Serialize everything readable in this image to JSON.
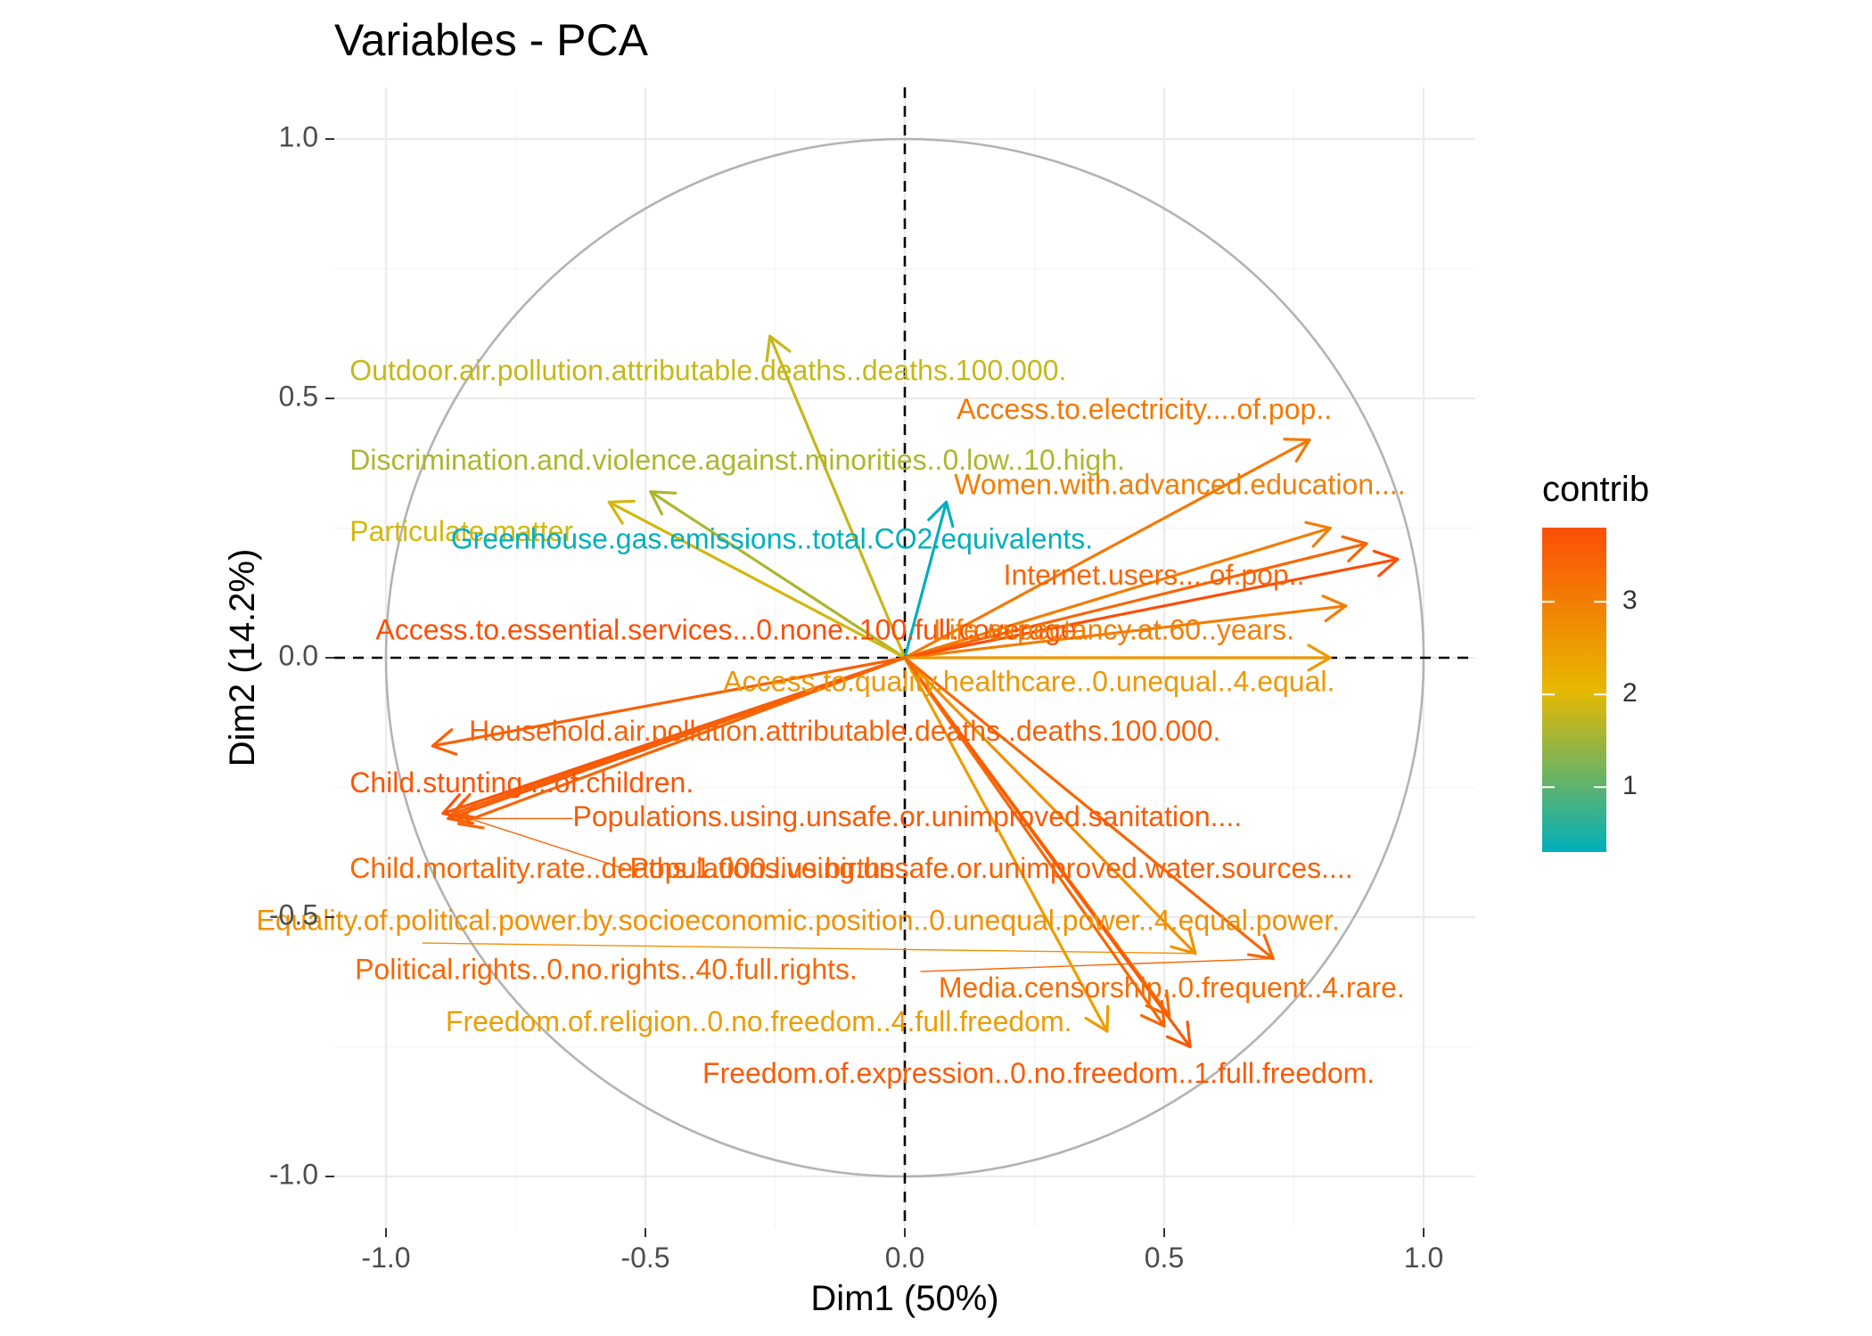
{
  "chart_data": {
    "type": "scatter",
    "title": "Variables - PCA",
    "xlabel": "Dim1 (50%)",
    "ylabel": "Dim2 (14.2%)",
    "xlim": [
      -1.1,
      1.1
    ],
    "ylim": [
      -1.1,
      1.1
    ],
    "x_ticks": [
      {
        "value": -1.0,
        "label": "-1.0"
      },
      {
        "value": -0.5,
        "label": "-0.5"
      },
      {
        "value": 0.0,
        "label": "0.0"
      },
      {
        "value": 0.5,
        "label": "0.5"
      },
      {
        "value": 1.0,
        "label": "1.0"
      }
    ],
    "y_ticks": [
      {
        "value": 1.0,
        "label": "1.0"
      },
      {
        "value": 0.5,
        "label": "0.5"
      },
      {
        "value": 0.0,
        "label": "0.0"
      },
      {
        "value": -0.5,
        "label": "-0.5"
      },
      {
        "value": -1.0,
        "label": "-1.0"
      }
    ],
    "grid": true,
    "unit_circle": true,
    "reference_lines": "dashed lines at x = 0 and y = 0",
    "color_scale": {
      "title": "contrib",
      "min": 0.3,
      "max": 3.8,
      "low_color": "#00AFBB",
      "mid_color": "#E7B800",
      "mid_value": 2.05,
      "high_color": "#FC4E07",
      "ticks": [
        {
          "value": 1,
          "label": "1"
        },
        {
          "value": 2,
          "label": "2"
        },
        {
          "value": 3,
          "label": "3"
        }
      ]
    },
    "legend_position": "right",
    "variables": [
      {
        "name": "Outdoor.air.pollution.attributable.deaths..deaths.100.000.",
        "x": -0.26,
        "y": 0.62,
        "contrib": 1.8
      },
      {
        "name": "Access.to.electricity....of.pop..",
        "x": 0.78,
        "y": 0.42,
        "contrib": 3.1
      },
      {
        "name": "Discrimination.and.violence.against.minorities..0.low..10.high.",
        "x": -0.49,
        "y": 0.32,
        "contrib": 1.6
      },
      {
        "name": "Women.with.advanced.education....",
        "x": 0.82,
        "y": 0.25,
        "contrib": 3.0
      },
      {
        "name": "Particulate.matter",
        "x": -0.57,
        "y": 0.3,
        "contrib": 1.9
      },
      {
        "name": "Greenhouse.gas.emissions..total.CO2.equivalents.",
        "x": 0.08,
        "y": 0.3,
        "contrib": 0.3
      },
      {
        "name": "Internet.users....of.pop..",
        "x": 0.89,
        "y": 0.22,
        "contrib": 3.4
      },
      {
        "name": "Life.expectancy.at.60..years.",
        "x": 0.85,
        "y": 0.1,
        "contrib": 3.0
      },
      {
        "name": "Access.to.essential.services...0.none..100.full.coverage.",
        "x": 0.95,
        "y": 0.19,
        "contrib": 3.8
      },
      {
        "name": "Access.to.quality.healthcare..0.unequal..4.equal.",
        "x": 0.82,
        "y": 0.0,
        "contrib": 2.6
      },
      {
        "name": "Household.air.pollution.attributable.deaths..deaths.100.000.",
        "x": -0.91,
        "y": -0.17,
        "contrib": 3.5
      },
      {
        "name": "Child.stunting....of.children.",
        "x": -0.89,
        "y": -0.3,
        "contrib": 3.7
      },
      {
        "name": "Populations.using.unsafe.or.unimproved.sanitation....",
        "x": -0.88,
        "y": -0.31,
        "contrib": 3.6
      },
      {
        "name": "Child.mortality.rate..deaths.1.000.live.births.",
        "x": -0.86,
        "y": -0.32,
        "contrib": 3.4
      },
      {
        "name": "Populations.using.unsafe.or.unimproved.water.sources....",
        "x": -0.87,
        "y": -0.3,
        "contrib": 3.5
      },
      {
        "name": "Equality.of.political.power.by.socioeconomic.position..0.unequal.power..4.equal.power.",
        "x": 0.56,
        "y": -0.57,
        "contrib": 2.7
      },
      {
        "name": "Political.rights..0.no.rights..40.full.rights.",
        "x": 0.71,
        "y": -0.58,
        "contrib": 3.4
      },
      {
        "name": "Media.censorship..0.frequent..4.rare.",
        "x": 0.51,
        "y": -0.69,
        "contrib": 3.3
      },
      {
        "name": "Freedom.of.religion..0.no.freedom..4.full.freedom.",
        "x": 0.39,
        "y": -0.72,
        "contrib": 2.5
      },
      {
        "name": "Freedom.of.expression..0.no.freedom..1.full.freedom.",
        "x": 0.55,
        "y": -0.75,
        "contrib": 3.6
      },
      {
        "name": "",
        "x": 0.5,
        "y": -0.71,
        "contrib": 3.4
      }
    ],
    "labels": [
      {
        "text": "Outdoor.air.pollution.attributable.deaths..deaths.100.000.",
        "x": -1.07,
        "y": 0.55,
        "contrib": 1.8
      },
      {
        "text": "Access.to.electricity....of.pop..",
        "x": 0.1,
        "y": 0.475,
        "contrib": 3.1
      },
      {
        "text": "Discrimination.and.violence.against.minorities..0.low..10.high.",
        "x": -1.07,
        "y": 0.377,
        "contrib": 1.6
      },
      {
        "text": "Women.with.advanced.education....",
        "x": 0.095,
        "y": 0.33,
        "contrib": 3.0
      },
      {
        "text": "Particulate.matter",
        "x": -1.07,
        "y": 0.24,
        "contrib": 1.9
      },
      {
        "text": "Greenhouse.gas.emissions..total.CO2.equivalents.",
        "x": -0.875,
        "y": 0.225,
        "contrib": 0.3
      },
      {
        "text": "Internet.users....of.pop..",
        "x": 0.19,
        "y": 0.155,
        "contrib": 3.4
      },
      {
        "text": "Access.to.essential.services...0.none..100.full.coverage.",
        "x": -1.02,
        "y": 0.05,
        "contrib": 3.8
      },
      {
        "text": "Life.expectancy.at.60..years.",
        "x": 0.055,
        "y": 0.05,
        "contrib": 3.0
      },
      {
        "text": "Access.to.quality.healthcare..0.unequal..4.equal.",
        "x": -0.35,
        "y": -0.05,
        "contrib": 2.6
      },
      {
        "text": "Household.air.pollution.attributable.deaths..deaths.100.000.",
        "x": -0.84,
        "y": -0.145,
        "contrib": 3.5
      },
      {
        "text": "Child.stunting....of.children.",
        "x": -1.07,
        "y": -0.245,
        "contrib": 3.7
      },
      {
        "text": "Populations.using.unsafe.or.unimproved.sanitation....",
        "x": -0.64,
        "y": -0.31,
        "contrib": 3.6
      },
      {
        "text": "Child.mortality.rate..deaths.1.000.live.births.",
        "x": -1.07,
        "y": -0.41,
        "contrib": 3.4
      },
      {
        "text": "Populations.using.unsafe.or.unimproved.water.sources....",
        "x": -0.53,
        "y": -0.41,
        "contrib": 3.5
      },
      {
        "text": "Equality.of.political.power.by.socioeconomic.position..0.unequal.power..4.equal.power.",
        "x": -1.25,
        "y": -0.51,
        "contrib": 2.7
      },
      {
        "text": "Political.rights..0.no.rights..40.full.rights.",
        "x": -1.06,
        "y": -0.605,
        "contrib": 3.4
      },
      {
        "text": "Media.censorship..0.frequent..4.rare.",
        "x": 0.065,
        "y": -0.64,
        "contrib": 3.3
      },
      {
        "text": "Freedom.of.religion..0.no.freedom..4.full.freedom.",
        "x": -0.885,
        "y": -0.705,
        "contrib": 2.5
      },
      {
        "text": "Freedom.of.expression..0.no.freedom..1.full.freedom.",
        "x": -0.39,
        "y": -0.805,
        "contrib": 3.6
      }
    ],
    "leader_lines": [
      {
        "from": [
          -0.64,
          -0.31
        ],
        "to": [
          -0.88,
          -0.31
        ],
        "contrib": 3.6
      },
      {
        "from": [
          -0.53,
          -0.41
        ],
        "to": [
          -0.87,
          -0.3
        ],
        "contrib": 3.5
      },
      {
        "from": [
          -0.93,
          -0.55
        ],
        "to": [
          0.56,
          -0.57
        ],
        "contrib": 2.7
      },
      {
        "from": [
          0.03,
          -0.605
        ],
        "to": [
          0.71,
          -0.58
        ],
        "contrib": 3.4
      }
    ]
  }
}
